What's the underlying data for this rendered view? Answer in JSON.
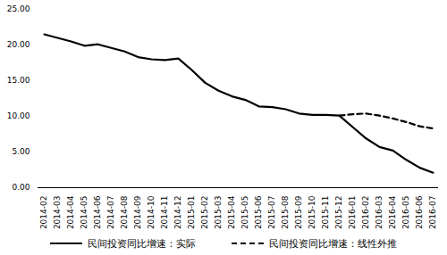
{
  "chart_data": {
    "type": "line",
    "categories": [
      "2014-02",
      "2014-03",
      "2014-04",
      "2014-05",
      "2014-06",
      "2014-07",
      "2014-08",
      "2014-09",
      "2014-10",
      "2014-11",
      "2014-12",
      "2015-01",
      "2015-02",
      "2015-03",
      "2015-04",
      "2015-05",
      "2015-06",
      "2015-07",
      "2015-08",
      "2015-09",
      "2015-10",
      "2015-11",
      "2015-12",
      "2016-01",
      "2016-02",
      "2016-03",
      "2016-04",
      "2016-05",
      "2016-06",
      "2016-07"
    ],
    "series": [
      {
        "name": "民间投资同比增速：实际",
        "color": "#000000",
        "line_style": "solid",
        "values": [
          21.5,
          21.0,
          20.5,
          19.9,
          20.1,
          19.6,
          19.1,
          18.3,
          18.0,
          17.9,
          18.1,
          16.5,
          14.7,
          13.6,
          12.8,
          12.3,
          11.4,
          11.3,
          11.0,
          10.4,
          10.2,
          10.2,
          10.1,
          8.5,
          6.9,
          5.7,
          5.2,
          3.9,
          2.8,
          2.1
        ]
      },
      {
        "name": "民间投资同比增速：线性外推",
        "color": "#000000",
        "line_style": "dashed",
        "values": [
          null,
          null,
          null,
          null,
          null,
          null,
          null,
          null,
          null,
          null,
          null,
          null,
          null,
          null,
          null,
          null,
          null,
          null,
          null,
          null,
          null,
          null,
          10.1,
          10.3,
          10.4,
          10.1,
          9.7,
          9.2,
          8.6,
          8.3
        ]
      }
    ],
    "ylim": [
      0,
      25
    ],
    "yticks": [
      {
        "value": 0,
        "label": "0.00"
      },
      {
        "value": 5,
        "label": "5.00"
      },
      {
        "value": 10,
        "label": "10.00"
      },
      {
        "value": 15,
        "label": "15.00"
      },
      {
        "value": 20,
        "label": "20.00"
      },
      {
        "value": 25,
        "label": "25.00"
      }
    ],
    "grid": false,
    "legend": "bottom"
  }
}
